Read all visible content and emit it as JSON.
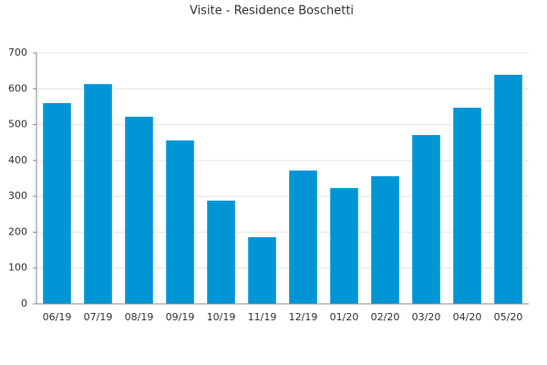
{
  "chart_data": {
    "type": "bar",
    "title": "Visite - Residence Boschetti",
    "categories": [
      "06/19",
      "07/19",
      "08/19",
      "09/19",
      "10/19",
      "11/19",
      "12/19",
      "01/20",
      "02/20",
      "03/20",
      "04/20",
      "05/20"
    ],
    "values": [
      560,
      613,
      522,
      456,
      288,
      186,
      372,
      323,
      356,
      471,
      547,
      639
    ],
    "color": "#0096d6",
    "ylim": [
      0,
      700
    ],
    "yticks": [
      0,
      100,
      200,
      300,
      400,
      500,
      600,
      700
    ],
    "grid": true
  }
}
